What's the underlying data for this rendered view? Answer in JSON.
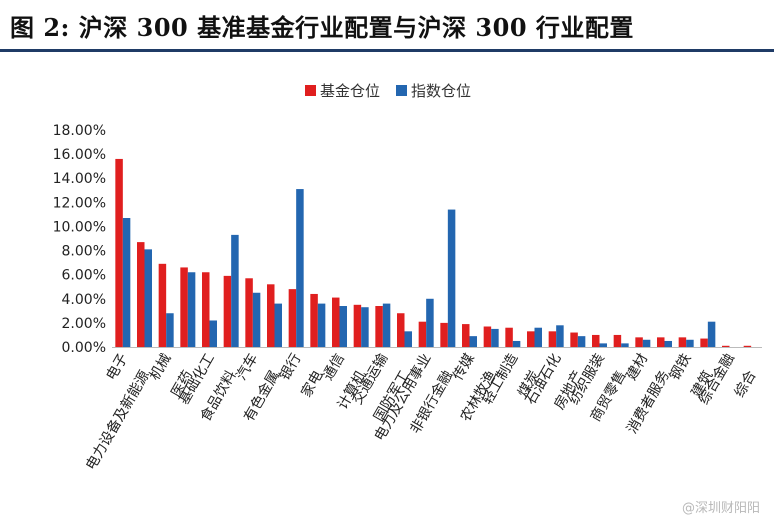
{
  "title": "图 2: 沪深 300 基准基金行业配置与沪深 300 行业配置",
  "watermark": "@深圳财阳阳",
  "colors": {
    "fund": "#e01f1f",
    "index": "#2366b0",
    "title_rule": "#1f3b66"
  },
  "chart_data": {
    "type": "bar",
    "title": "",
    "xlabel": "",
    "ylabel": "",
    "ylim": [
      0,
      18
    ],
    "y_ticks": [
      "0.00%",
      "2.00%",
      "4.00%",
      "6.00%",
      "8.00%",
      "10.00%",
      "12.00%",
      "14.00%",
      "16.00%",
      "18.00%"
    ],
    "grid": false,
    "legend_position": "top-center",
    "categories": [
      "电子",
      "电力设备及新能源",
      "机械",
      "医药",
      "基础化工",
      "食品饮料",
      "汽车",
      "有色金属",
      "银行",
      "家电",
      "通信",
      "计算机",
      "交通运输",
      "国防军工",
      "电力及公用事业",
      "非银行金融",
      "传媒",
      "农林牧渔",
      "轻工制造",
      "煤炭",
      "石油石化",
      "房地产",
      "纺织服装",
      "商贸零售",
      "建材",
      "消费者服务",
      "钢铁",
      "建筑",
      "综合金融",
      "综合"
    ],
    "series": [
      {
        "name": "基金仓位",
        "values": [
          15.6,
          8.7,
          6.9,
          6.6,
          6.2,
          5.9,
          5.7,
          5.2,
          4.8,
          4.4,
          4.1,
          3.5,
          3.4,
          2.8,
          2.1,
          2.0,
          1.9,
          1.7,
          1.6,
          1.3,
          1.3,
          1.2,
          1.0,
          1.0,
          0.8,
          0.8,
          0.8,
          0.7,
          0.1,
          0.1
        ]
      },
      {
        "name": "指数仓位",
        "values": [
          10.7,
          8.1,
          2.8,
          6.2,
          2.2,
          9.3,
          4.5,
          3.6,
          13.1,
          3.6,
          3.4,
          3.3,
          3.6,
          1.3,
          4.0,
          11.4,
          0.9,
          1.5,
          0.5,
          1.6,
          1.8,
          0.9,
          0.3,
          0.3,
          0.6,
          0.5,
          0.6,
          2.1,
          0.0,
          0.0
        ]
      }
    ]
  }
}
